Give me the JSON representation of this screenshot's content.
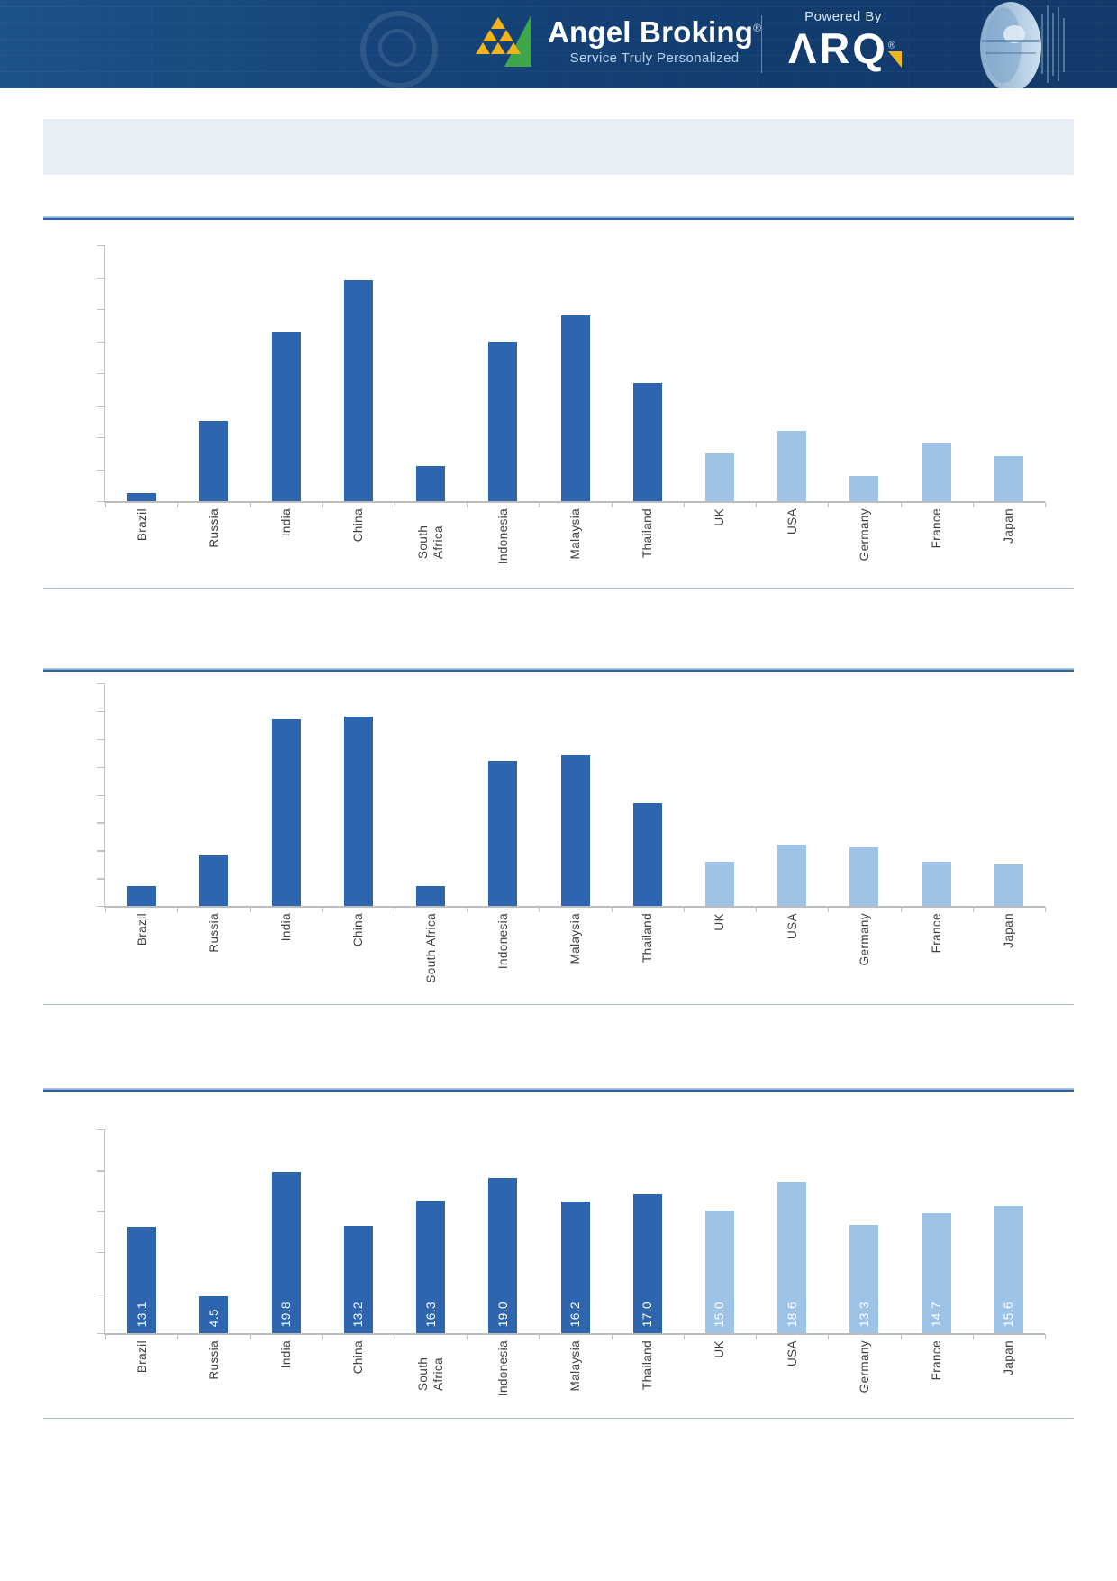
{
  "header": {
    "brand": "Angel Broking",
    "registered_mark": "®",
    "tagline": "Service Truly Personalized",
    "powered_by": "Powered By",
    "product": "ARQ",
    "product_stylized": "ΛRQ"
  },
  "title_band": {
    "text": ""
  },
  "colors": {
    "bar_dark": "#2E65AF",
    "bar_light": "#9DC3E6",
    "divider_dark": "#2A63A9",
    "divider_light": "#A6C5E4",
    "thin_line": "#9DBAD0",
    "axis": "#C3C3C3",
    "band_bg": "#E9EFF7",
    "label_text": "#3F3F3F",
    "value_label_text": "#FFFFFF",
    "header_bg": "#16447A",
    "logo_gold": "#F2B31D",
    "logo_green": "#3FA64B"
  },
  "categories": [
    "Brazil",
    "Russia",
    "India",
    "China",
    "South Africa",
    "Indonesia",
    "Malaysia",
    "Thailand",
    "UK",
    "USA",
    "Germany",
    "France",
    "Japan"
  ],
  "category_color_groups": [
    "dark",
    "dark",
    "dark",
    "dark",
    "dark",
    "dark",
    "dark",
    "dark",
    "light",
    "light",
    "light",
    "light",
    "light"
  ],
  "chart_data": [
    {
      "type": "bar",
      "title": "",
      "categories": [
        "Brazil",
        "Russia",
        "India",
        "China",
        "South Africa",
        "Indonesia",
        "Malaysia",
        "Thailand",
        "UK",
        "USA",
        "Germany",
        "France",
        "Japan"
      ],
      "values": [
        0.25,
        2.5,
        5.3,
        6.9,
        1.1,
        5.0,
        5.8,
        3.7,
        1.5,
        2.2,
        0.8,
        1.8,
        1.4
      ],
      "values_estimated_from_bar_heights": true,
      "value_labels_visible": false,
      "y_axis": {
        "min": 0,
        "max": 8,
        "tick_step": 1,
        "tick_labels_visible": false
      },
      "grid": false,
      "legend": false
    },
    {
      "type": "bar",
      "title": "",
      "categories": [
        "Brazil",
        "Russia",
        "India",
        "China",
        "South Africa",
        "Indonesia",
        "Malaysia",
        "Thailand",
        "UK",
        "USA",
        "Germany",
        "France",
        "Japan"
      ],
      "values": [
        0.7,
        1.8,
        6.7,
        6.8,
        0.7,
        5.2,
        5.4,
        3.7,
        1.6,
        2.2,
        2.1,
        1.6,
        1.5
      ],
      "values_estimated_from_bar_heights": true,
      "value_labels_visible": false,
      "y_axis": {
        "min": 0,
        "max": 8,
        "tick_step": 1,
        "tick_labels_visible": false
      },
      "grid": false,
      "legend": false
    },
    {
      "type": "bar",
      "title": "",
      "categories": [
        "Brazil",
        "Russia",
        "India",
        "China",
        "South Africa",
        "Indonesia",
        "Malaysia",
        "Thailand",
        "UK",
        "USA",
        "Germany",
        "France",
        "Japan"
      ],
      "values": [
        13.1,
        4.5,
        19.8,
        13.2,
        16.3,
        19.0,
        16.2,
        17.0,
        15.0,
        18.6,
        13.3,
        14.7,
        15.6
      ],
      "value_labels": [
        "13.1",
        "4.5",
        "19.8",
        "13.2",
        "16.3",
        "19.0",
        "16.2",
        "17.0",
        "15.0",
        "18.6",
        "13.3",
        "14.7",
        "15.6"
      ],
      "value_labels_visible": true,
      "y_axis": {
        "min": 0,
        "max": 25,
        "tick_step": 5,
        "tick_labels_visible": false
      },
      "grid": false,
      "legend": false
    }
  ]
}
